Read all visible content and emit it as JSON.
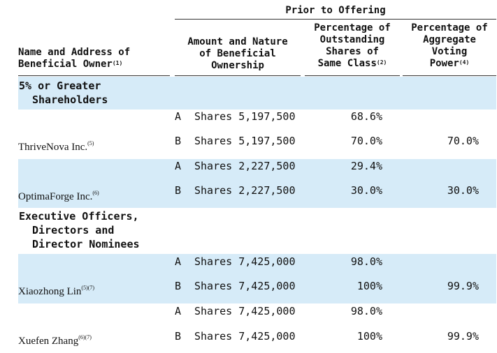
{
  "header": {
    "group": "Prior to Offering",
    "col_name": [
      "Name and Address of",
      "Beneficial Owner"
    ],
    "col_name_note": "(1)",
    "col_amount": [
      "Amount and Nature",
      "of Beneficial",
      "Ownership"
    ],
    "col_pct_class": [
      "Percentage of",
      "Outstanding",
      "Shares of",
      "Same Class"
    ],
    "col_pct_class_note": "(2)",
    "col_voting": [
      "Percentage of",
      "Aggregate",
      "Voting",
      "Power"
    ],
    "col_voting_note": "(4)"
  },
  "sections": {
    "major": [
      "5% or Greater",
      "Shareholders"
    ],
    "officers": [
      "Executive Officers,",
      "Directors and",
      "Director Nominees"
    ]
  },
  "rows": [
    {
      "name": "ThriveNova Inc.",
      "note": "(5)",
      "a": {
        "class": "A",
        "amount": "Shares 5,197,500",
        "pct": "68.6%",
        "voting": ""
      },
      "b": {
        "class": "B",
        "amount": "Shares 5,197,500",
        "pct": "70.0%",
        "voting": "70.0%"
      }
    },
    {
      "name": "OptimaForge Inc.",
      "note": "(6)",
      "a": {
        "class": "A",
        "amount": "Shares 2,227,500",
        "pct": "29.4%",
        "voting": ""
      },
      "b": {
        "class": "B",
        "amount": "Shares 2,227,500",
        "pct": "30.0%",
        "voting": "30.0%"
      }
    },
    {
      "name": "Xiaozhong Lin",
      "note": "(5)(7)",
      "a": {
        "class": "A",
        "amount": "Shares 7,425,000",
        "pct": "98.0%",
        "voting": ""
      },
      "b": {
        "class": "B",
        "amount": "Shares 7,425,000",
        "pct": "100%",
        "voting": "99.9%"
      }
    },
    {
      "name": "Xuefen Zhang",
      "note": "(6)(7)",
      "a": {
        "class": "A",
        "amount": "Shares 7,425,000",
        "pct": "98.0%",
        "voting": ""
      },
      "b": {
        "class": "B",
        "amount": "Shares 7,425,000",
        "pct": "100%",
        "voting": "99.9%"
      }
    }
  ]
}
